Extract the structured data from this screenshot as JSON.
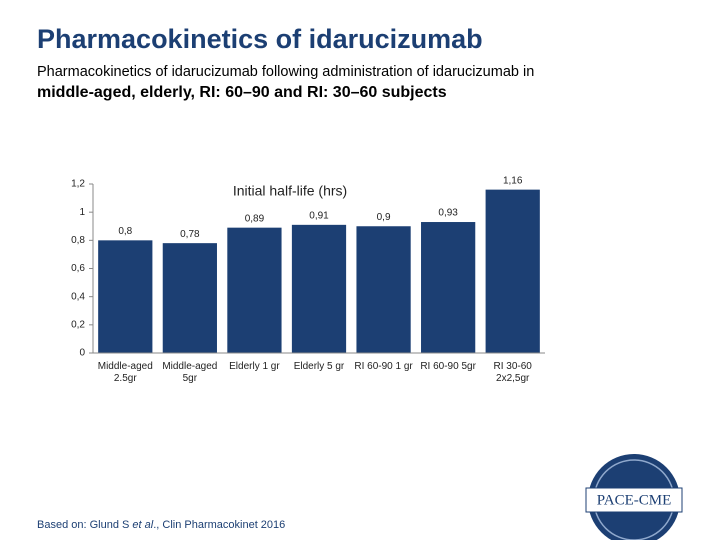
{
  "header": {
    "title": "Pharmacokinetics of idarucizumab",
    "subtitle_line1": "Pharmacokinetics of idarucizumab following administration of idarucizumab in",
    "subtitle_line2": "middle-aged, elderly, RI: 60–90 and RI: 30–60 subjects"
  },
  "chart_data": {
    "type": "bar",
    "title": "Initial half-life (hrs)",
    "categories": [
      "Middle-aged 2.5gr",
      "Middle-aged 5gr",
      "Elderly 1 gr",
      "Elderly 5 gr",
      "RI 60-90 1 gr",
      "RI 60-90 5gr",
      "RI 30-60 2x2,5gr"
    ],
    "values": [
      0.8,
      0.78,
      0.89,
      0.91,
      0.9,
      0.93,
      1.16
    ],
    "value_labels": [
      "0,8",
      "0,78",
      "0,89",
      "0,91",
      "0,9",
      "0,93",
      "1,16"
    ],
    "color": "#1c3f73",
    "ylim": [
      0,
      1.2
    ],
    "yticks": [
      0,
      {
        "value": 0.2,
        "label": "0,2"
      },
      {
        "value": 0.4,
        "label": "0,4"
      },
      {
        "value": 0.6,
        "label": "0,6"
      },
      {
        "value": 0.8,
        "label": "0,8"
      },
      1,
      {
        "value": 1.2,
        "label": "1,2"
      }
    ]
  },
  "footer": {
    "prefix": "Based on: Glund S ",
    "italic": "et al",
    "suffix": "., Clin Pharmacokinet 2016"
  },
  "logo": {
    "text": "PACE-CME"
  }
}
